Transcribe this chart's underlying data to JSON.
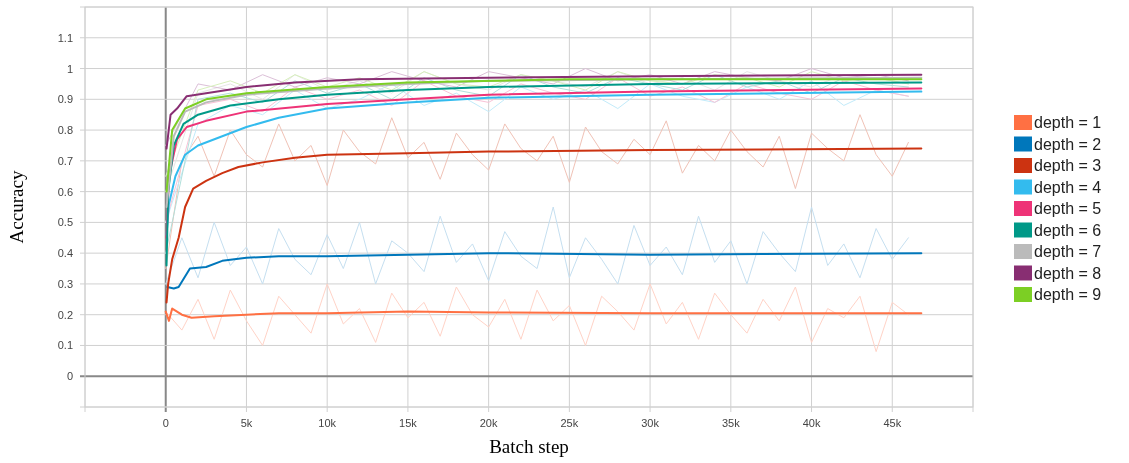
{
  "chart_data": {
    "type": "line",
    "xlabel": "Batch step",
    "ylabel": "Accuracy",
    "xlim": [
      -5000,
      50000
    ],
    "ylim": [
      -0.1,
      1.2
    ],
    "xticks": [
      {
        "value": -5000,
        "label": null
      },
      {
        "value": 0,
        "label": "0"
      },
      {
        "value": 5000,
        "label": "5k"
      },
      {
        "value": 10000,
        "label": "10k"
      },
      {
        "value": 15000,
        "label": "15k"
      },
      {
        "value": 20000,
        "label": "20k"
      },
      {
        "value": 25000,
        "label": "25k"
      },
      {
        "value": 30000,
        "label": "30k"
      },
      {
        "value": 35000,
        "label": "35k"
      },
      {
        "value": 40000,
        "label": "40k"
      },
      {
        "value": 45000,
        "label": "45k"
      },
      {
        "value": 50000,
        "label": null
      }
    ],
    "yticks": [
      {
        "value": -0.1,
        "label": null
      },
      0,
      0.1,
      0.2,
      0.3,
      0.4,
      0.5,
      0.6,
      0.7,
      0.8,
      0.9,
      1,
      1.1,
      {
        "value": 1.2,
        "label": null
      }
    ],
    "grid": true,
    "legend": "right",
    "marker": "none",
    "line_style": "solid",
    "series": [
      {
        "color": "#ffd3c7",
        "x": [
          0,
          1000,
          2000,
          3000,
          4000,
          5000,
          6000,
          7000,
          8000,
          9000,
          10000,
          11000,
          12000,
          13000,
          14000,
          15000,
          16000,
          17000,
          18000,
          19000,
          20000,
          21000,
          22000,
          23000,
          24000,
          25000,
          26000,
          27000,
          28000,
          29000,
          30000,
          31000,
          32000,
          33000,
          34000,
          35000,
          36000,
          37000,
          38000,
          39000,
          40000,
          41000,
          42000,
          43000,
          44000,
          45000,
          46000
        ],
        "values": [
          0.21,
          0.15,
          0.25,
          0.12,
          0.28,
          0.18,
          0.1,
          0.26,
          0.2,
          0.14,
          0.3,
          0.17,
          0.22,
          0.11,
          0.27,
          0.19,
          0.24,
          0.13,
          0.29,
          0.2,
          0.16,
          0.25,
          0.12,
          0.28,
          0.18,
          0.23,
          0.1,
          0.26,
          0.21,
          0.15,
          0.3,
          0.17,
          0.24,
          0.12,
          0.27,
          0.2,
          0.14,
          0.25,
          0.18,
          0.29,
          0.11,
          0.22,
          0.19,
          0.26,
          0.08,
          0.24,
          0.2
        ]
      },
      {
        "color": "#c5dff0",
        "x": [
          0,
          1000,
          2000,
          3000,
          4000,
          5000,
          6000,
          7000,
          8000,
          9000,
          10000,
          11000,
          12000,
          13000,
          14000,
          15000,
          16000,
          17000,
          18000,
          19000,
          20000,
          21000,
          22000,
          23000,
          24000,
          25000,
          26000,
          27000,
          28000,
          29000,
          30000,
          31000,
          32000,
          33000,
          34000,
          35000,
          36000,
          37000,
          38000,
          39000,
          40000,
          41000,
          42000,
          43000,
          44000,
          45000,
          46000
        ],
        "values": [
          0.3,
          0.45,
          0.32,
          0.5,
          0.36,
          0.42,
          0.3,
          0.48,
          0.38,
          0.33,
          0.46,
          0.35,
          0.5,
          0.3,
          0.44,
          0.4,
          0.34,
          0.52,
          0.37,
          0.43,
          0.31,
          0.47,
          0.39,
          0.35,
          0.55,
          0.32,
          0.45,
          0.38,
          0.3,
          0.49,
          0.36,
          0.42,
          0.33,
          0.52,
          0.37,
          0.44,
          0.3,
          0.47,
          0.4,
          0.34,
          0.55,
          0.36,
          0.43,
          0.32,
          0.48,
          0.38,
          0.45
        ]
      },
      {
        "color": "#f0c2b6",
        "x": [
          0,
          1000,
          2000,
          3000,
          4000,
          5000,
          6000,
          7000,
          8000,
          9000,
          10000,
          11000,
          12000,
          13000,
          14000,
          15000,
          16000,
          17000,
          18000,
          19000,
          20000,
          21000,
          22000,
          23000,
          24000,
          25000,
          26000,
          27000,
          28000,
          29000,
          30000,
          31000,
          32000,
          33000,
          34000,
          35000,
          36000,
          37000,
          38000,
          39000,
          40000,
          41000,
          42000,
          43000,
          44000,
          45000,
          46000
        ],
        "values": [
          0.35,
          0.7,
          0.78,
          0.65,
          0.8,
          0.72,
          0.68,
          0.82,
          0.7,
          0.75,
          0.62,
          0.8,
          0.73,
          0.69,
          0.84,
          0.71,
          0.76,
          0.64,
          0.79,
          0.72,
          0.67,
          0.82,
          0.74,
          0.7,
          0.78,
          0.63,
          0.81,
          0.73,
          0.69,
          0.77,
          0.72,
          0.83,
          0.66,
          0.75,
          0.7,
          0.8,
          0.73,
          0.68,
          0.78,
          0.61,
          0.79,
          0.74,
          0.7,
          0.85,
          0.72,
          0.65,
          0.76
        ]
      },
      {
        "color": "#c2ebfa",
        "x": [
          0,
          2000,
          4000,
          6000,
          8000,
          10000,
          12000,
          14000,
          16000,
          18000,
          20000,
          22000,
          24000,
          26000,
          28000,
          30000,
          32000,
          34000,
          36000,
          38000,
          40000,
          42000,
          44000,
          46000
        ],
        "values": [
          0.5,
          0.82,
          0.88,
          0.85,
          0.93,
          0.87,
          0.9,
          0.95,
          0.88,
          0.92,
          0.86,
          0.94,
          0.9,
          0.93,
          0.87,
          0.95,
          0.91,
          0.89,
          0.94,
          0.9,
          0.96,
          0.88,
          0.93,
          0.91
        ]
      },
      {
        "color": "#f9c2d6",
        "x": [
          0,
          2000,
          4000,
          6000,
          8000,
          10000,
          12000,
          14000,
          16000,
          18000,
          20000,
          22000,
          24000,
          26000,
          28000,
          30000,
          32000,
          34000,
          36000,
          38000,
          40000,
          42000,
          44000,
          46000
        ],
        "values": [
          0.5,
          0.88,
          0.9,
          0.86,
          0.94,
          0.9,
          0.93,
          0.88,
          0.96,
          0.91,
          0.89,
          0.95,
          0.92,
          0.9,
          0.97,
          0.91,
          0.94,
          0.89,
          0.95,
          0.92,
          0.9,
          0.96,
          0.93,
          0.91
        ]
      },
      {
        "color": "#b2e0db",
        "x": [
          0,
          2000,
          4000,
          6000,
          8000,
          10000,
          12000,
          14000,
          16000,
          18000,
          20000,
          22000,
          24000,
          26000,
          28000,
          30000,
          32000,
          34000,
          36000,
          38000,
          40000,
          42000,
          44000,
          46000
        ],
        "values": [
          0.4,
          0.9,
          0.92,
          0.89,
          0.96,
          0.92,
          0.95,
          0.9,
          0.97,
          0.93,
          0.91,
          0.98,
          0.94,
          0.92,
          0.97,
          0.95,
          0.93,
          0.98,
          0.94,
          0.96,
          0.92,
          0.97,
          0.95,
          0.94
        ]
      },
      {
        "color": "#e6e6e6",
        "x": [
          0,
          2000,
          4000,
          6000,
          8000,
          10000,
          12000,
          14000,
          16000,
          18000,
          20000,
          22000,
          24000,
          26000,
          28000,
          30000,
          32000,
          34000,
          36000,
          38000,
          40000,
          42000,
          44000,
          46000
        ],
        "values": [
          0.6,
          0.92,
          0.95,
          0.9,
          0.98,
          0.93,
          0.96,
          0.92,
          0.99,
          0.95,
          0.93,
          0.98,
          0.96,
          0.94,
          0.99,
          0.95,
          0.97,
          0.93,
          0.99,
          0.96,
          0.94,
          0.98,
          0.97,
          0.95
        ]
      },
      {
        "color": "#dcc0d8",
        "x": [
          0,
          2000,
          4000,
          6000,
          8000,
          10000,
          12000,
          14000,
          16000,
          18000,
          20000,
          22000,
          24000,
          26000,
          28000,
          30000,
          32000,
          34000,
          36000,
          38000,
          40000,
          42000,
          44000,
          46000
        ],
        "values": [
          0.75,
          0.95,
          0.93,
          0.98,
          0.94,
          0.97,
          0.95,
          0.99,
          0.96,
          0.94,
          0.99,
          0.97,
          0.95,
          1,
          0.96,
          0.98,
          0.95,
          0.99,
          0.97,
          0.96,
          1,
          0.97,
          0.98,
          0.96
        ]
      },
      {
        "color": "#d7f0bc",
        "x": [
          0,
          2000,
          4000,
          6000,
          8000,
          10000,
          12000,
          14000,
          16000,
          18000,
          20000,
          22000,
          24000,
          26000,
          28000,
          30000,
          32000,
          34000,
          36000,
          38000,
          40000,
          42000,
          44000,
          46000
        ],
        "values": [
          0.65,
          0.93,
          0.96,
          0.92,
          0.98,
          0.94,
          0.97,
          0.93,
          0.99,
          0.95,
          0.94,
          0.98,
          0.96,
          0.93,
          0.99,
          0.96,
          0.95,
          0.98,
          0.97,
          0.94,
          0.99,
          0.96,
          0.97,
          0.95
        ]
      },
      {
        "name": "depth = 1",
        "color": "#ff7043",
        "x": [
          0,
          200,
          400,
          1000,
          1600,
          3000,
          5000,
          7000,
          10000,
          15000,
          20000,
          30000,
          46800
        ],
        "values": [
          0.21,
          0.18,
          0.22,
          0.2,
          0.19,
          0.195,
          0.2,
          0.205,
          0.205,
          0.21,
          0.207,
          0.205,
          0.205
        ]
      },
      {
        "name": "depth = 2",
        "color": "#0077bb",
        "x": [
          100,
          500,
          800,
          1500,
          2500,
          3500,
          5000,
          7000,
          10000,
          15000,
          20000,
          30000,
          46800
        ],
        "values": [
          0.29,
          0.285,
          0.29,
          0.35,
          0.355,
          0.375,
          0.385,
          0.39,
          0.39,
          0.395,
          0.4,
          0.395,
          0.4
        ]
      },
      {
        "name": "depth = 3",
        "color": "#cc3311",
        "x": [
          50,
          150,
          400,
          800,
          1200,
          1700,
          2500,
          3500,
          4500,
          6000,
          8000,
          10000,
          15000,
          20000,
          30000,
          46800
        ],
        "values": [
          0.24,
          0.3,
          0.38,
          0.45,
          0.55,
          0.61,
          0.635,
          0.66,
          0.68,
          0.695,
          0.71,
          0.72,
          0.725,
          0.73,
          0.735,
          0.74
        ]
      },
      {
        "name": "depth = 4",
        "color": "#33bbee",
        "x": [
          50,
          200,
          600,
          1200,
          2000,
          3500,
          5000,
          7000,
          10000,
          15000,
          20000,
          30000,
          46800
        ],
        "values": [
          0.46,
          0.56,
          0.65,
          0.72,
          0.75,
          0.78,
          0.81,
          0.84,
          0.87,
          0.89,
          0.905,
          0.915,
          0.925
        ]
      },
      {
        "name": "depth = 5",
        "color": "#ee3377",
        "x": [
          50,
          200,
          700,
          1300,
          2500,
          5000,
          10000,
          15000,
          20000,
          30000,
          46800
        ],
        "values": [
          0.45,
          0.65,
          0.77,
          0.81,
          0.83,
          0.86,
          0.885,
          0.9,
          0.915,
          0.925,
          0.935
        ]
      },
      {
        "name": "depth = 6",
        "color": "#009988",
        "x": [
          50,
          150,
          500,
          1100,
          2000,
          4000,
          7000,
          10000,
          15000,
          20000,
          30000,
          46800
        ],
        "values": [
          0.36,
          0.6,
          0.75,
          0.82,
          0.85,
          0.88,
          0.9,
          0.915,
          0.93,
          0.94,
          0.95,
          0.955
        ]
      },
      {
        "name": "depth = 7",
        "color": "#bbbbbb",
        "x": [
          50,
          500,
          1200,
          2500,
          5000,
          10000,
          15000,
          20000,
          30000,
          46800
        ],
        "values": [
          0.55,
          0.78,
          0.86,
          0.89,
          0.915,
          0.935,
          0.95,
          0.96,
          0.965,
          0.97
        ]
      },
      {
        "name": "depth = 8",
        "color": "#882e72",
        "x": [
          50,
          300,
          700,
          1300,
          2500,
          5000,
          8000,
          12000,
          20000,
          30000,
          46800
        ],
        "values": [
          0.74,
          0.85,
          0.87,
          0.91,
          0.92,
          0.94,
          0.955,
          0.965,
          0.97,
          0.975,
          0.98
        ]
      },
      {
        "name": "depth = 9",
        "color": "#7ccf24",
        "x": [
          50,
          400,
          1200,
          2500,
          5000,
          10000,
          15000,
          25000,
          46800
        ],
        "values": [
          0.6,
          0.8,
          0.87,
          0.9,
          0.92,
          0.94,
          0.955,
          0.965,
          0.965
        ]
      }
    ]
  }
}
